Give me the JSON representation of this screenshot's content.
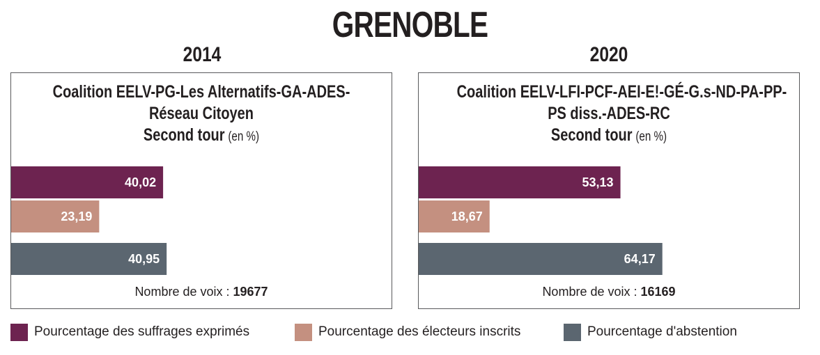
{
  "header": {
    "title": "GRENOBLE"
  },
  "colors": {
    "exprimes": "#6d2350",
    "inscrits": "#c49080",
    "abstention": "#5b6670"
  },
  "panels": [
    {
      "year": "2014",
      "title_lines": [
        "Coalition EELV-PG-Les Alternatifs-GA-ADES-",
        "Réseau Citoyen",
        "Second tour"
      ],
      "unit": "(en %)",
      "votes_label": "Nombre de voix : ",
      "votes_value": "19677"
    },
    {
      "year": "2020",
      "title_lines": [
        "Coalition EELV-LFI-PCF-AEI-E!-GÉ-G.s-ND-PA-PP-",
        "PS diss.-ADES-RC",
        "Second tour"
      ],
      "unit": "(en %)",
      "votes_label": "Nombre de voix : ",
      "votes_value": "16169"
    }
  ],
  "legend": [
    {
      "label": "Pourcentage des suffrages exprimés",
      "color": "#6d2350"
    },
    {
      "label": "Pourcentage des électeurs inscrits",
      "color": "#c49080"
    },
    {
      "label": "Pourcentage d'abstention",
      "color": "#5b6670"
    }
  ],
  "chart_data": [
    {
      "type": "bar",
      "orientation": "horizontal",
      "title": "Coalition EELV-PG-Les Alternatifs-GA-ADES-Réseau Citoyen Second tour (en %)",
      "year": "2014",
      "categories": [
        "Pourcentage des suffrages exprimés",
        "Pourcentage des électeurs inscrits",
        "Pourcentage d'abstention"
      ],
      "values": [
        40.02,
        23.19,
        40.95
      ],
      "value_labels": [
        "40,02",
        "23,19",
        "40,95"
      ],
      "colors": [
        "#6d2350",
        "#c49080",
        "#5b6670"
      ],
      "xlim": [
        0,
        100
      ],
      "grid": false
    },
    {
      "type": "bar",
      "orientation": "horizontal",
      "title": "Coalition EELV-LFI-PCF-AEI-E!-GÉ-G.s-ND-PA-PP-PS diss.-ADES-RC Second tour (en %)",
      "year": "2020",
      "categories": [
        "Pourcentage des suffrages exprimés",
        "Pourcentage des électeurs inscrits",
        "Pourcentage d'abstention"
      ],
      "values": [
        53.13,
        18.67,
        64.17
      ],
      "value_labels": [
        "53,13",
        "18,67",
        "64,17"
      ],
      "colors": [
        "#6d2350",
        "#c49080",
        "#5b6670"
      ],
      "xlim": [
        0,
        100
      ],
      "grid": false
    }
  ]
}
